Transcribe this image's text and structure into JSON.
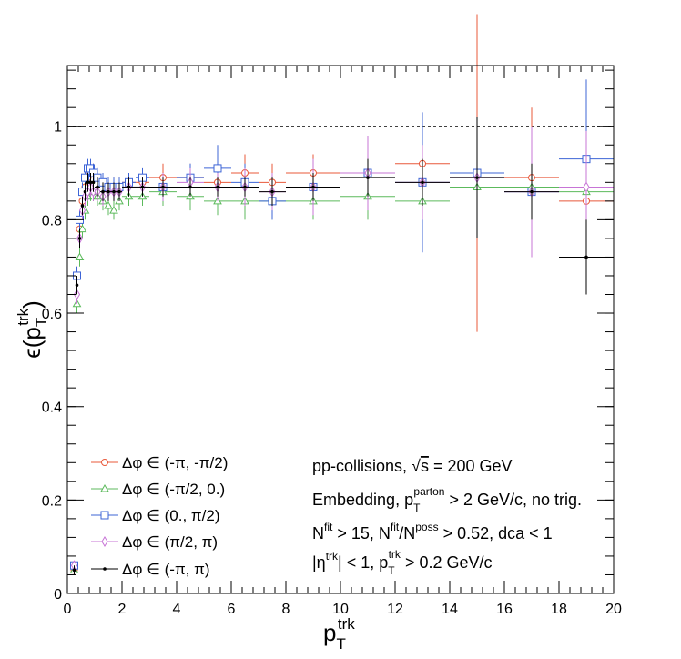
{
  "chart_data": {
    "type": "scatter",
    "title": "",
    "xlabel": "p",
    "xlabel_sub": "T",
    "xlabel_sup": "trk",
    "ylabel_prefix": "ϵ(p",
    "ylabel_sub": "T",
    "ylabel_sup": "trk",
    "ylabel_suffix": ")",
    "xlim": [
      0,
      20
    ],
    "ylim": [
      0,
      1.13
    ],
    "xticks": [
      0,
      2,
      4,
      6,
      8,
      10,
      12,
      14,
      16,
      18,
      20
    ],
    "xtick_labels": [
      "0",
      "2",
      "4",
      "6",
      "8",
      "10",
      "12",
      "14",
      "16",
      "18",
      "20"
    ],
    "yticks": [
      0,
      0.2,
      0.4,
      0.6,
      0.8,
      1
    ],
    "ytick_labels": [
      "0",
      "0.2",
      "0.4",
      "0.6",
      "0.8",
      "1"
    ],
    "reference_line": 1.0,
    "legend_position": "bottom-left",
    "legend": [
      {
        "label": "Δφ ∈ (-π, -π/2)",
        "color": "#e8583a",
        "marker": "circle"
      },
      {
        "label": "Δφ ∈ (-π/2, 0.)",
        "color": "#5cba5c",
        "marker": "triangle"
      },
      {
        "label": "Δφ ∈ (0., π/2)",
        "color": "#3d64d6",
        "marker": "square"
      },
      {
        "label": "Δφ ∈ (π/2, π)",
        "color": "#c774d6",
        "marker": "diamond"
      },
      {
        "label": "Δφ ∈ (-π, π)",
        "color": "#000000",
        "marker": "dot"
      }
    ],
    "annotations": {
      "line1_a": "pp-collisions, ",
      "line1_sqrt": "√",
      "line1_s": "s",
      "line1_b": " = 200 GeV",
      "line2_a": "Embedding, p",
      "line2_sub": "T",
      "line2_sup": "parton",
      "line2_b": " > 2 GeV/c, no trig.",
      "line3_a": "N",
      "line3_sup1": "fit",
      "line3_b": " > 15, N",
      "line3_sup2": "fit",
      "line3_c": "/N",
      "line3_sup3": "poss",
      "line3_d": " > 0.52, dca < 1",
      "line4_a": "|η",
      "line4_sup1": "trk",
      "line4_b": "| < 1, p",
      "line4_sub": "T",
      "line4_sup2": "trk",
      "line4_c": " > 0.2 GeV/c"
    },
    "series": [
      {
        "name": "Δφ ∈ (-π, -π/2)",
        "color": "#e8583a",
        "marker": "circle",
        "points": [
          [
            0.25,
            0.05,
            0.05,
            0.01
          ],
          [
            0.35,
            0.68,
            0.05,
            0.02
          ],
          [
            0.45,
            0.78,
            0.05,
            0.02
          ],
          [
            0.55,
            0.84,
            0.05,
            0.02
          ],
          [
            0.65,
            0.87,
            0.05,
            0.02
          ],
          [
            0.75,
            0.89,
            0.05,
            0.02
          ],
          [
            0.85,
            0.9,
            0.05,
            0.02
          ],
          [
            0.95,
            0.9,
            0.05,
            0.02
          ],
          [
            1.1,
            0.89,
            0.1,
            0.02
          ],
          [
            1.3,
            0.88,
            0.1,
            0.02
          ],
          [
            1.5,
            0.87,
            0.1,
            0.02
          ],
          [
            1.7,
            0.87,
            0.1,
            0.02
          ],
          [
            1.9,
            0.87,
            0.1,
            0.02
          ],
          [
            2.25,
            0.88,
            0.25,
            0.02
          ],
          [
            2.75,
            0.88,
            0.25,
            0.02
          ],
          [
            3.5,
            0.89,
            0.5,
            0.03
          ],
          [
            4.5,
            0.89,
            0.5,
            0.03
          ],
          [
            5.5,
            0.88,
            0.5,
            0.03
          ],
          [
            6.5,
            0.9,
            0.5,
            0.04
          ],
          [
            7.5,
            0.88,
            0.5,
            0.04
          ],
          [
            9,
            0.9,
            1,
            0.04
          ],
          [
            11,
            0.9,
            1,
            0.05
          ],
          [
            13,
            0.92,
            1,
            0.06
          ],
          [
            15,
            0.9,
            1,
            0.34
          ],
          [
            17,
            0.89,
            1,
            0.15
          ],
          [
            19,
            0.84,
            1,
            0.08
          ]
        ]
      },
      {
        "name": "Δφ ∈ (-π/2, 0.)",
        "color": "#5cba5c",
        "marker": "triangle",
        "points": [
          [
            0.25,
            0.05,
            0.05,
            0.01
          ],
          [
            0.35,
            0.62,
            0.05,
            0.02
          ],
          [
            0.45,
            0.72,
            0.05,
            0.02
          ],
          [
            0.55,
            0.78,
            0.05,
            0.02
          ],
          [
            0.65,
            0.82,
            0.05,
            0.02
          ],
          [
            0.75,
            0.85,
            0.05,
            0.02
          ],
          [
            0.85,
            0.86,
            0.05,
            0.02
          ],
          [
            0.95,
            0.86,
            0.05,
            0.02
          ],
          [
            1.1,
            0.85,
            0.1,
            0.02
          ],
          [
            1.3,
            0.84,
            0.1,
            0.02
          ],
          [
            1.5,
            0.83,
            0.1,
            0.02
          ],
          [
            1.7,
            0.82,
            0.1,
            0.02
          ],
          [
            1.9,
            0.84,
            0.1,
            0.02
          ],
          [
            2.25,
            0.85,
            0.25,
            0.02
          ],
          [
            2.75,
            0.85,
            0.25,
            0.02
          ],
          [
            3.5,
            0.86,
            0.5,
            0.03
          ],
          [
            4.5,
            0.85,
            0.5,
            0.03
          ],
          [
            5.5,
            0.84,
            0.5,
            0.03
          ],
          [
            6.5,
            0.84,
            0.5,
            0.04
          ],
          [
            7.5,
            0.84,
            0.5,
            0.04
          ],
          [
            9,
            0.84,
            1,
            0.04
          ],
          [
            11,
            0.85,
            1,
            0.05
          ],
          [
            13,
            0.84,
            1,
            0.06
          ],
          [
            15,
            0.87,
            1,
            0.08
          ],
          [
            17,
            0.87,
            1,
            0.08
          ],
          [
            19,
            0.86,
            1,
            0.08
          ]
        ]
      },
      {
        "name": "Δφ ∈ (0., π/2)",
        "color": "#3d64d6",
        "marker": "square",
        "points": [
          [
            0.25,
            0.06,
            0.05,
            0.01
          ],
          [
            0.35,
            0.68,
            0.05,
            0.02
          ],
          [
            0.45,
            0.8,
            0.05,
            0.02
          ],
          [
            0.55,
            0.86,
            0.05,
            0.02
          ],
          [
            0.65,
            0.89,
            0.05,
            0.02
          ],
          [
            0.75,
            0.91,
            0.05,
            0.02
          ],
          [
            0.85,
            0.91,
            0.05,
            0.02
          ],
          [
            0.95,
            0.9,
            0.05,
            0.02
          ],
          [
            1.1,
            0.89,
            0.1,
            0.02
          ],
          [
            1.3,
            0.88,
            0.1,
            0.02
          ],
          [
            1.5,
            0.87,
            0.1,
            0.02
          ],
          [
            1.7,
            0.87,
            0.1,
            0.02
          ],
          [
            1.9,
            0.87,
            0.1,
            0.02
          ],
          [
            2.25,
            0.88,
            0.25,
            0.02
          ],
          [
            2.75,
            0.89,
            0.25,
            0.02
          ],
          [
            3.5,
            0.87,
            0.5,
            0.03
          ],
          [
            4.5,
            0.89,
            0.5,
            0.03
          ],
          [
            5.5,
            0.91,
            0.5,
            0.05
          ],
          [
            6.5,
            0.88,
            0.5,
            0.04
          ],
          [
            7.5,
            0.84,
            0.5,
            0.04
          ],
          [
            9,
            0.87,
            1,
            0.05
          ],
          [
            11,
            0.9,
            1,
            0.06
          ],
          [
            13,
            0.88,
            1,
            0.15
          ],
          [
            15,
            0.9,
            1,
            0.1
          ],
          [
            17,
            0.86,
            1,
            0.08
          ],
          [
            19,
            0.93,
            1,
            0.17
          ]
        ]
      },
      {
        "name": "Δφ ∈ (π/2, π)",
        "color": "#c774d6",
        "marker": "diamond",
        "points": [
          [
            0.25,
            0.06,
            0.05,
            0.01
          ],
          [
            0.35,
            0.64,
            0.05,
            0.02
          ],
          [
            0.45,
            0.76,
            0.05,
            0.02
          ],
          [
            0.55,
            0.82,
            0.05,
            0.02
          ],
          [
            0.65,
            0.85,
            0.05,
            0.02
          ],
          [
            0.75,
            0.86,
            0.05,
            0.02
          ],
          [
            0.85,
            0.87,
            0.05,
            0.02
          ],
          [
            0.95,
            0.86,
            0.05,
            0.02
          ],
          [
            1.1,
            0.86,
            0.1,
            0.02
          ],
          [
            1.3,
            0.85,
            0.1,
            0.02
          ],
          [
            1.5,
            0.86,
            0.1,
            0.02
          ],
          [
            1.7,
            0.86,
            0.1,
            0.02
          ],
          [
            1.9,
            0.86,
            0.1,
            0.02
          ],
          [
            2.25,
            0.87,
            0.25,
            0.02
          ],
          [
            2.75,
            0.87,
            0.25,
            0.02
          ],
          [
            3.5,
            0.87,
            0.5,
            0.03
          ],
          [
            4.5,
            0.88,
            0.5,
            0.03
          ],
          [
            5.5,
            0.87,
            0.5,
            0.03
          ],
          [
            6.5,
            0.87,
            0.5,
            0.04
          ],
          [
            7.5,
            0.86,
            0.5,
            0.04
          ],
          [
            9,
            0.87,
            1,
            0.06
          ],
          [
            11,
            0.9,
            1,
            0.08
          ],
          [
            13,
            0.88,
            1,
            0.08
          ],
          [
            15,
            0.89,
            1,
            0.08
          ],
          [
            17,
            0.86,
            1,
            0.14
          ],
          [
            19,
            0.87,
            1,
            0.12
          ]
        ]
      },
      {
        "name": "Δφ ∈ (-π, π)",
        "color": "#000000",
        "marker": "dot",
        "points": [
          [
            0.25,
            0.05,
            0.05,
            0.01
          ],
          [
            0.35,
            0.66,
            0.05,
            0.02
          ],
          [
            0.45,
            0.76,
            0.05,
            0.02
          ],
          [
            0.55,
            0.83,
            0.05,
            0.02
          ],
          [
            0.65,
            0.86,
            0.05,
            0.02
          ],
          [
            0.75,
            0.88,
            0.05,
            0.02
          ],
          [
            0.85,
            0.88,
            0.05,
            0.02
          ],
          [
            0.95,
            0.88,
            0.05,
            0.02
          ],
          [
            1.1,
            0.87,
            0.1,
            0.02
          ],
          [
            1.3,
            0.86,
            0.1,
            0.02
          ],
          [
            1.5,
            0.86,
            0.1,
            0.02
          ],
          [
            1.7,
            0.86,
            0.1,
            0.02
          ],
          [
            1.9,
            0.86,
            0.1,
            0.02
          ],
          [
            2.25,
            0.87,
            0.25,
            0.02
          ],
          [
            2.75,
            0.87,
            0.25,
            0.02
          ],
          [
            3.5,
            0.87,
            0.5,
            0.02
          ],
          [
            4.5,
            0.87,
            0.5,
            0.02
          ],
          [
            5.5,
            0.87,
            0.5,
            0.02
          ],
          [
            6.5,
            0.87,
            0.5,
            0.02
          ],
          [
            7.5,
            0.86,
            0.5,
            0.03
          ],
          [
            9,
            0.87,
            1,
            0.03
          ],
          [
            11,
            0.89,
            1,
            0.04
          ],
          [
            13,
            0.88,
            1,
            0.05
          ],
          [
            15,
            0.89,
            1,
            0.13
          ],
          [
            17,
            0.86,
            1,
            0.06
          ],
          [
            19,
            0.72,
            1,
            0.08
          ]
        ]
      }
    ]
  }
}
